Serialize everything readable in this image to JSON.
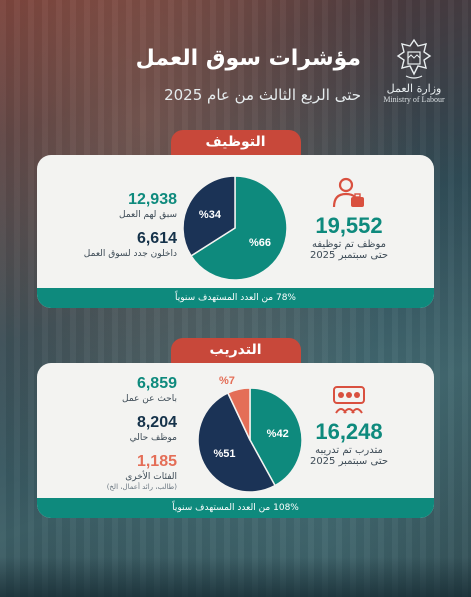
{
  "header": {
    "title": "مؤشرات سوق العمل",
    "subtitle": "حتى الربع الثالث من عام 2025",
    "logo_ar": "وزارة العمل",
    "logo_en": "Ministry of Labour"
  },
  "employment": {
    "pill": "التوظيف",
    "total": "19,552",
    "total_line1": "موظف تم توظيفه",
    "total_line2": "حتى سبتمبر 2025",
    "stats": [
      {
        "value": "12,938",
        "label": "سبق لهم العمل"
      },
      {
        "value": "6,614",
        "label": "داخلون جدد لسوق العمل"
      }
    ],
    "pie": {
      "slices": [
        {
          "label": "%66",
          "value": 66,
          "color": "#0e8a7d"
        },
        {
          "label": "%34",
          "value": 34,
          "color": "#1b3356"
        }
      ]
    },
    "footer": "78% من العدد المستهدف سنوياً"
  },
  "training": {
    "pill": "التدريب",
    "total": "16,248",
    "total_line1": "متدرب تم تدريبه",
    "total_line2": "حتى سبتمبر 2025",
    "stats": [
      {
        "value": "6,859",
        "label": "باحث عن عمل"
      },
      {
        "value": "8,204",
        "label": "موظف حالي"
      },
      {
        "value": "1,185",
        "label": "الفئات الأخرى",
        "note": "(طالب، رائد أعمال، الخ)"
      }
    ],
    "pie": {
      "slices": [
        {
          "label": "%42",
          "value": 42,
          "color": "#0e8a7d"
        },
        {
          "label": "%51",
          "value": 51,
          "color": "#1b3356"
        },
        {
          "label": "%7",
          "value": 7,
          "color": "#e46e57"
        }
      ]
    },
    "footer": "108% من العدد المستهدف سنوياً"
  },
  "colors": {
    "teal": "#0e8a7d",
    "navy": "#1b3356",
    "coral": "#e46e57",
    "red": "#c8483a"
  }
}
